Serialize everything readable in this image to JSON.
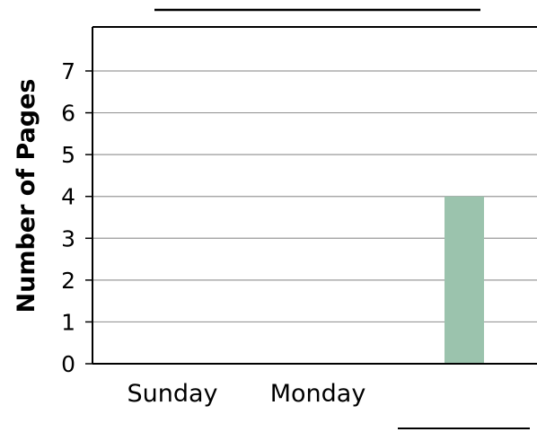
{
  "chart_data": {
    "type": "bar",
    "title": "",
    "xlabel": "",
    "ylabel": "Number of Pages",
    "categories": [
      "Sunday",
      "Monday",
      ""
    ],
    "values": [
      0,
      0,
      4
    ],
    "ylim": [
      0,
      7
    ],
    "yticks": [
      "0",
      "1",
      "2",
      "3",
      "4",
      "5",
      "6",
      "7"
    ],
    "grid": true,
    "bar_color": "#9bc3ad",
    "grid_color": "#9a9a9a",
    "blank_lines": [
      "title-blank",
      "category-blank"
    ]
  }
}
